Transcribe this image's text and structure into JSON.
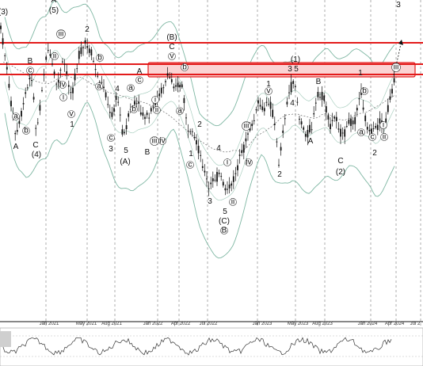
{
  "chart_data": {
    "type": "candlestick",
    "instrument_panel": {
      "x_axis_labels": [
        "Jan 2021",
        "May 2021",
        "Aug 2021",
        "Jan 2022",
        "Apr 2022",
        "Jul 2022",
        "Jan 2023",
        "May 2023",
        "Aug 2023",
        "Jan 2024",
        "Apr 2024",
        "Jul 2"
      ],
      "grid": true,
      "grid_style": "dashed",
      "resistance_zone": {
        "color": "#e31b1b",
        "fill": "#fbd3d3"
      },
      "projection_arrow": "up"
    },
    "indicators": [
      "bollinger_bands",
      "moving_average",
      "oscillator"
    ],
    "wave_labels": [
      {
        "text": "(3)"
      },
      {
        "text": "A"
      },
      {
        "text": "(5)"
      },
      {
        "text": "B"
      },
      {
        "text": "c"
      },
      {
        "text": "A"
      },
      {
        "text": "C"
      },
      {
        "text": "(4)"
      },
      {
        "text": "a"
      },
      {
        "text": "b"
      },
      {
        "text": "iii"
      },
      {
        "text": "ii"
      },
      {
        "text": "i"
      },
      {
        "text": "iv"
      },
      {
        "text": "v"
      },
      {
        "text": "1"
      },
      {
        "text": "2"
      },
      {
        "text": "b"
      },
      {
        "text": "a"
      },
      {
        "text": "4"
      },
      {
        "text": "c"
      },
      {
        "text": "3"
      },
      {
        "text": "5"
      },
      {
        "text": "(A)"
      },
      {
        "text": "A"
      },
      {
        "text": "c"
      },
      {
        "text": "a"
      },
      {
        "text": "b"
      },
      {
        "text": "B"
      },
      {
        "text": "iii"
      },
      {
        "text": "iv"
      },
      {
        "text": "ii"
      },
      {
        "text": "i"
      },
      {
        "text": "(B)"
      },
      {
        "text": "C"
      },
      {
        "text": "v"
      },
      {
        "text": "b"
      },
      {
        "text": "a"
      },
      {
        "text": "c"
      },
      {
        "text": "1"
      },
      {
        "text": "2"
      },
      {
        "text": "4"
      },
      {
        "text": "3"
      },
      {
        "text": "i"
      },
      {
        "text": "5"
      },
      {
        "text": "ii"
      },
      {
        "text": "(C)"
      },
      {
        "text": "B"
      },
      {
        "text": "iii"
      },
      {
        "text": "iv"
      },
      {
        "text": "1"
      },
      {
        "text": "v"
      },
      {
        "text": "2"
      },
      {
        "text": "(1)"
      },
      {
        "text": "3"
      },
      {
        "text": "5"
      },
      {
        "text": "4"
      },
      {
        "text": "B"
      },
      {
        "text": "A"
      },
      {
        "text": "C"
      },
      {
        "text": "(2)"
      },
      {
        "text": "1"
      },
      {
        "text": "b"
      },
      {
        "text": "a"
      },
      {
        "text": "c"
      },
      {
        "text": "ii"
      },
      {
        "text": "2"
      },
      {
        "text": "i"
      },
      {
        "text": "iii"
      },
      {
        "text": "3"
      }
    ]
  }
}
